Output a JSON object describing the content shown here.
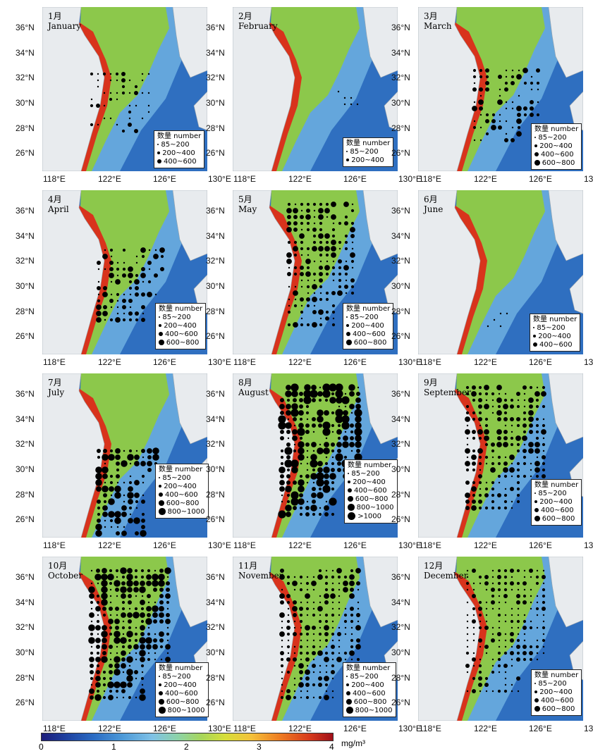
{
  "latitude_labels": [
    "36°N",
    "34°N",
    "32°N",
    "30°N",
    "28°N",
    "26°N"
  ],
  "longitude_labels": [
    "118°E",
    "122°E",
    "126°E",
    "130°E"
  ],
  "legend_title": "数量 number",
  "size_classes": [
    "85~200",
    "200~400",
    "400~600",
    "600~800",
    "800~1000",
    ">1000"
  ],
  "panels": [
    {
      "month_cn": "1月",
      "month_en": "January",
      "legend_classes": [
        0,
        1,
        2
      ]
    },
    {
      "month_cn": "2月",
      "month_en": "February",
      "legend_classes": [
        0,
        1
      ]
    },
    {
      "month_cn": "3月",
      "month_en": "March",
      "legend_classes": [
        0,
        1,
        2,
        3
      ]
    },
    {
      "month_cn": "4月",
      "month_en": "April",
      "legend_classes": [
        0,
        1,
        2,
        3
      ]
    },
    {
      "month_cn": "5月",
      "month_en": "May",
      "legend_classes": [
        0,
        1,
        2,
        3
      ]
    },
    {
      "month_cn": "6月",
      "month_en": "June",
      "legend_classes": [
        0,
        1,
        2
      ]
    },
    {
      "month_cn": "7月",
      "month_en": "July",
      "legend_classes": [
        0,
        1,
        2,
        3,
        4
      ]
    },
    {
      "month_cn": "8月",
      "month_en": "August",
      "legend_classes": [
        0,
        1,
        2,
        3,
        4,
        5
      ]
    },
    {
      "month_cn": "9月",
      "month_en": "September",
      "legend_classes": [
        0,
        1,
        2,
        3
      ]
    },
    {
      "month_cn": "10月",
      "month_en": "October",
      "legend_classes": [
        0,
        1,
        2,
        3,
        4
      ]
    },
    {
      "month_cn": "11月",
      "month_en": "November",
      "legend_classes": [
        0,
        1,
        2,
        3,
        4
      ]
    },
    {
      "month_cn": "12月",
      "month_en": "December",
      "legend_classes": [
        0,
        1,
        2,
        3
      ]
    }
  ],
  "colorbar": {
    "ticks": [
      "0",
      "1",
      "2",
      "3",
      "4"
    ],
    "unit": "mg/m³",
    "colors": [
      "#1c1c7a",
      "#2b6cc4",
      "#7fc1e6",
      "#a7d65a",
      "#f4c13a",
      "#d73a1b",
      "#a0101a"
    ]
  },
  "colors": {
    "land": "#e8ebee",
    "shelf_green": "#8cc84b",
    "open_ocean": "#2f6fc0",
    "coastal_red": "#d8331c",
    "mid_blue": "#64a6dc"
  }
}
